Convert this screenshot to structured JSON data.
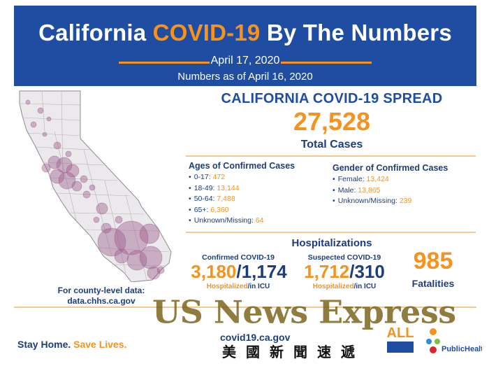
{
  "header": {
    "title_part1": "California ",
    "title_highlight": "COVID-19",
    "title_part2": " By The Numbers",
    "date": "April 17, 2020",
    "as_of": "Numbers as of April 16, 2020"
  },
  "colors": {
    "brand_blue": "#1e4da1",
    "accent_orange": "#f6921e",
    "map_bubble": "#9c5a8a",
    "map_fill": "#ebe9ec"
  },
  "map": {
    "county_link_line1": "For county-level data:",
    "county_link_line2": "data.chhs.ca.gov"
  },
  "spread": {
    "title": "CALIFORNIA COVID-19 SPREAD",
    "total_cases": "27,528",
    "total_label": "Total Cases"
  },
  "ages": {
    "heading": "Ages of Confirmed Cases",
    "items": [
      {
        "label": "0-17: ",
        "value": "472"
      },
      {
        "label": "18-49: ",
        "value": "13,144"
      },
      {
        "label": "50-64: ",
        "value": "7,488"
      },
      {
        "label": "65+: ",
        "value": "6,360"
      },
      {
        "label": "Unknown/Missing: ",
        "value": "64"
      }
    ]
  },
  "gender": {
    "heading": "Gender of Confirmed Cases",
    "items": [
      {
        "label": "Female: ",
        "value": "13,424"
      },
      {
        "label": "Male: ",
        "value": "13,865"
      },
      {
        "label": "Unknown/Missing: ",
        "value": "239"
      }
    ]
  },
  "hospitalizations": {
    "title": "Hospitalizations",
    "confirmed": {
      "heading": "Confirmed COVID-19",
      "hospitalized": "3,180",
      "icu": "1,174",
      "label_hosp": "Hospitalized",
      "label_icu": "/in ICU"
    },
    "suspected": {
      "heading": "Suspected COVID-19",
      "hospitalized": "1,712",
      "icu": "310",
      "label_hosp": "Hospitalized",
      "label_icu": "/in ICU"
    }
  },
  "fatalities": {
    "value": "985",
    "label": "Fatalities"
  },
  "footer": {
    "stay_home": "Stay Home. ",
    "save_lives": "Save Lives.",
    "website": "covid19.ca.gov",
    "public_health": "PublicHealth"
  },
  "watermark": {
    "english": "US News Express",
    "chinese": "美國新聞速遞"
  }
}
